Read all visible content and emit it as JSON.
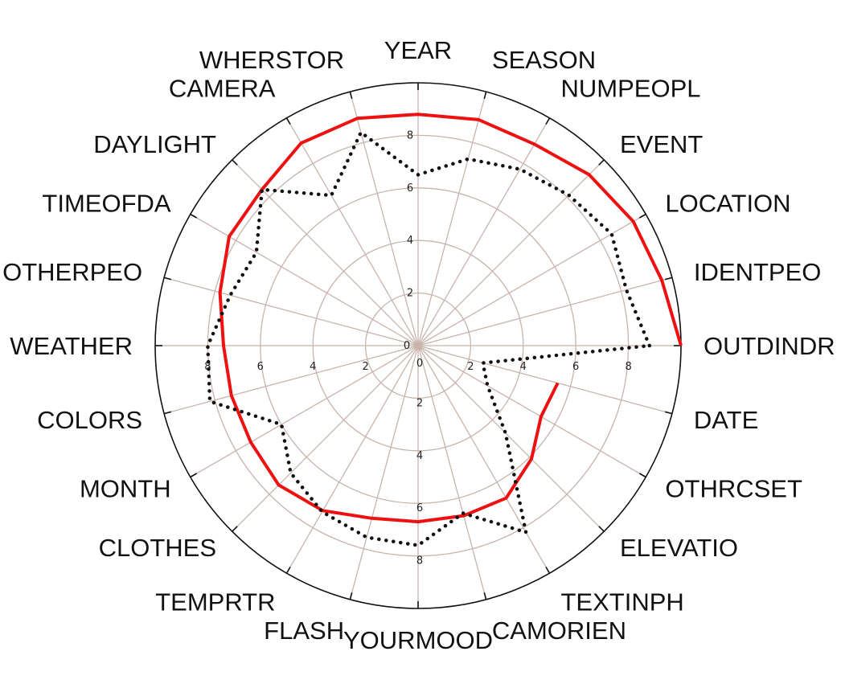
{
  "chart_data": {
    "type": "radar",
    "title": "",
    "categories": [
      "OUTDINDR",
      "IDENTPEO",
      "LOCATION",
      "EVENT",
      "NUMPEOPL",
      "SEASON",
      "YEAR",
      "WHERSTOR",
      "CAMERA",
      "DAYLIGHT",
      "TIMEOFDA",
      "OTHERPEO",
      "WEATHER",
      "COLORS",
      "MONTH",
      "CLOTHES",
      "TEMPRTR",
      "FLASH",
      "YOURMOOD",
      "CAMORIEN",
      "TEXTINPH",
      "ELEVATIO",
      "OTHRCSET",
      "DATE"
    ],
    "rlim": [
      0,
      10
    ],
    "ticks": [
      "0",
      "2",
      "4",
      "6",
      "8"
    ],
    "tick_values": [
      0,
      2,
      4,
      6,
      8
    ],
    "grid": true,
    "series": [
      {
        "style": "solid",
        "color": "#ee1111",
        "values": [
          10.0,
          9.6,
          9.45,
          9.2,
          8.85,
          8.9,
          8.8,
          8.95,
          8.9,
          8.4,
          8.3,
          7.8,
          7.4,
          7.35,
          7.35,
          7.5,
          7.25,
          6.8,
          6.7,
          6.7,
          6.7,
          6.1,
          5.4,
          5.5
        ]
      },
      {
        "style": "dotted",
        "color": "#111111",
        "values": [
          8.8,
          8.2,
          8.5,
          8.1,
          7.75,
          7.35,
          6.5,
          8.4,
          6.6,
          8.4,
          7.1,
          7.4,
          8.0,
          8.2,
          6.0,
          6.85,
          7.3,
          7.55,
          7.6,
          6.6,
          8.2,
          4.7,
          3.05,
          2.55
        ]
      }
    ]
  }
}
